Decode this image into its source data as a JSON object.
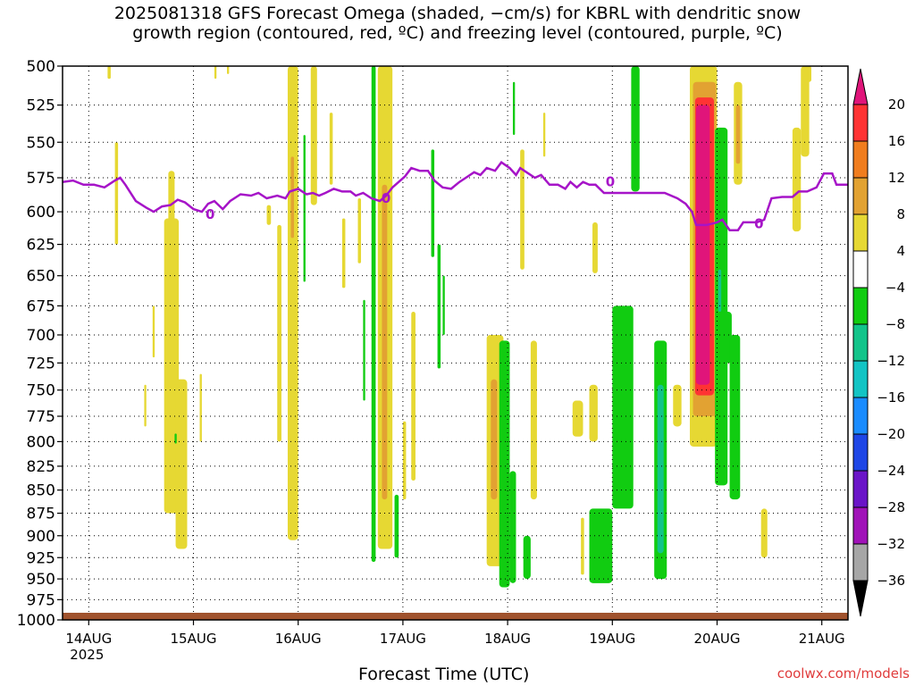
{
  "title": "2025081318 GFS Forecast Omega (shaded, −cm/s) for KBRL with dendritic snow\ngrowth region (contoured, red, ºC) and freezing level (contoured, purple, ºC)",
  "credit": "coolwx.com/models",
  "chart_data": {
    "type": "heatmap",
    "xlabel": "Forecast Time (UTC)",
    "x_ticks": [
      {
        "x": 0,
        "label": "14AUG",
        "sub": "2025"
      },
      {
        "x": 1,
        "label": "15AUG"
      },
      {
        "x": 2,
        "label": "16AUG"
      },
      {
        "x": 3,
        "label": "17AUG"
      },
      {
        "x": 4,
        "label": "18AUG"
      },
      {
        "x": 5,
        "label": "19AUG"
      },
      {
        "x": 6,
        "label": "20AUG"
      },
      {
        "x": 7,
        "label": "21AUG"
      }
    ],
    "xlim": [
      -0.25,
      7.25
    ],
    "y_ticks": [
      500,
      525,
      550,
      575,
      600,
      625,
      650,
      675,
      700,
      725,
      750,
      775,
      800,
      825,
      850,
      875,
      900,
      925,
      950,
      975,
      1000
    ],
    "ylim": [
      500,
      1000
    ],
    "y_scale": "log-pressure",
    "grid": true,
    "colorbar": {
      "labels": [
        "20",
        "16",
        "12",
        "8",
        "4",
        "−4",
        "−8",
        "−12",
        "−16",
        "−20",
        "−24",
        "−28",
        "−32",
        "−36"
      ],
      "colors": [
        "#e0157a",
        "#ff3333",
        "#f07d1e",
        "#e2a232",
        "#e6d833",
        "#ffffff",
        "#11cc11",
        "#12c48a",
        "#12c4c4",
        "#1a8cff",
        "#1e46e6",
        "#6a14c8",
        "#a012b8",
        "#a6a6a6",
        "#000000"
      ]
    },
    "omega_regions": [
      {
        "class": "yellow",
        "x0": 0.18,
        "x1": 0.21,
        "p0": 500,
        "p1": 508
      },
      {
        "class": "yellow",
        "x0": 0.25,
        "x1": 0.28,
        "p0": 550,
        "p1": 625
      },
      {
        "class": "yellow",
        "x0": 0.53,
        "x1": 0.55,
        "p0": 745,
        "p1": 785
      },
      {
        "class": "yellow",
        "x0": 0.61,
        "x1": 0.63,
        "p0": 675,
        "p1": 720
      },
      {
        "class": "yellow",
        "x0": 0.72,
        "x1": 0.86,
        "p0": 605,
        "p1": 875
      },
      {
        "class": "yellow",
        "x0": 0.76,
        "x1": 0.82,
        "p0": 570,
        "p1": 610
      },
      {
        "class": "yellow",
        "x0": 0.83,
        "x1": 0.94,
        "p0": 740,
        "p1": 915
      },
      {
        "class": "green",
        "x0": 0.82,
        "x1": 0.84,
        "p0": 792,
        "p1": 802
      },
      {
        "class": "yellow",
        "x0": 1.06,
        "x1": 1.08,
        "p0": 735,
        "p1": 800
      },
      {
        "class": "yellow",
        "x0": 1.2,
        "x1": 1.22,
        "p0": 500,
        "p1": 508
      },
      {
        "class": "yellow",
        "x0": 1.32,
        "x1": 1.34,
        "p0": 500,
        "p1": 505
      },
      {
        "class": "yellow",
        "x0": 1.7,
        "x1": 1.74,
        "p0": 595,
        "p1": 610
      },
      {
        "class": "yellow",
        "x0": 1.8,
        "x1": 1.84,
        "p0": 610,
        "p1": 800
      },
      {
        "class": "yellow",
        "x0": 1.9,
        "x1": 2.0,
        "p0": 500,
        "p1": 905
      },
      {
        "class": "orange",
        "x0": 1.93,
        "x1": 1.96,
        "p0": 560,
        "p1": 620
      },
      {
        "class": "green",
        "x0": 2.05,
        "x1": 2.07,
        "p0": 545,
        "p1": 655
      },
      {
        "class": "yellow",
        "x0": 2.12,
        "x1": 2.18,
        "p0": 500,
        "p1": 595
      },
      {
        "class": "yellow",
        "x0": 2.3,
        "x1": 2.33,
        "p0": 530,
        "p1": 580
      },
      {
        "class": "yellow",
        "x0": 2.42,
        "x1": 2.45,
        "p0": 605,
        "p1": 660
      },
      {
        "class": "yellow",
        "x0": 2.57,
        "x1": 2.6,
        "p0": 590,
        "p1": 640
      },
      {
        "class": "green",
        "x0": 2.62,
        "x1": 2.64,
        "p0": 670,
        "p1": 760
      },
      {
        "class": "green",
        "x0": 2.7,
        "x1": 2.74,
        "p0": 500,
        "p1": 930
      },
      {
        "class": "yellow",
        "x0": 2.76,
        "x1": 2.9,
        "p0": 500,
        "p1": 915
      },
      {
        "class": "orange",
        "x0": 2.8,
        "x1": 2.85,
        "p0": 580,
        "p1": 860
      },
      {
        "class": "green",
        "x0": 2.92,
        "x1": 2.96,
        "p0": 855,
        "p1": 925
      },
      {
        "class": "yellow",
        "x0": 3.0,
        "x1": 3.03,
        "p0": 780,
        "p1": 860
      },
      {
        "class": "yellow",
        "x0": 3.08,
        "x1": 3.12,
        "p0": 680,
        "p1": 840
      },
      {
        "class": "green",
        "x0": 3.27,
        "x1": 3.3,
        "p0": 555,
        "p1": 635
      },
      {
        "class": "green",
        "x0": 3.33,
        "x1": 3.36,
        "p0": 625,
        "p1": 730
      },
      {
        "class": "green",
        "x0": 3.38,
        "x1": 3.4,
        "p0": 650,
        "p1": 700
      },
      {
        "class": "yellow",
        "x0": 3.8,
        "x1": 3.96,
        "p0": 700,
        "p1": 935
      },
      {
        "class": "orange",
        "x0": 3.84,
        "x1": 3.9,
        "p0": 740,
        "p1": 860
      },
      {
        "class": "green",
        "x0": 3.92,
        "x1": 4.02,
        "p0": 705,
        "p1": 960
      },
      {
        "class": "green",
        "x0": 4.02,
        "x1": 4.08,
        "p0": 830,
        "p1": 955
      },
      {
        "class": "green",
        "x0": 4.05,
        "x1": 4.07,
        "p0": 510,
        "p1": 545
      },
      {
        "class": "yellow",
        "x0": 4.12,
        "x1": 4.16,
        "p0": 555,
        "p1": 645
      },
      {
        "class": "green",
        "x0": 4.15,
        "x1": 4.22,
        "p0": 900,
        "p1": 950
      },
      {
        "class": "yellow",
        "x0": 4.22,
        "x1": 4.28,
        "p0": 705,
        "p1": 860
      },
      {
        "class": "yellow",
        "x0": 4.34,
        "x1": 4.36,
        "p0": 530,
        "p1": 560
      },
      {
        "class": "yellow",
        "x0": 4.62,
        "x1": 4.72,
        "p0": 760,
        "p1": 795
      },
      {
        "class": "yellow",
        "x0": 4.7,
        "x1": 4.73,
        "p0": 880,
        "p1": 945
      },
      {
        "class": "yellow",
        "x0": 4.78,
        "x1": 4.86,
        "p0": 745,
        "p1": 800
      },
      {
        "class": "yellow",
        "x0": 4.81,
        "x1": 4.86,
        "p0": 608,
        "p1": 648
      },
      {
        "class": "green",
        "x0": 4.78,
        "x1": 5.0,
        "p0": 870,
        "p1": 955
      },
      {
        "class": "green",
        "x0": 5.0,
        "x1": 5.2,
        "p0": 675,
        "p1": 870
      },
      {
        "class": "green",
        "x0": 5.18,
        "x1": 5.26,
        "p0": 500,
        "p1": 585
      },
      {
        "class": "green",
        "x0": 5.4,
        "x1": 5.52,
        "p0": 705,
        "p1": 950
      },
      {
        "class": "teal",
        "x0": 5.43,
        "x1": 5.49,
        "p0": 745,
        "p1": 920
      },
      {
        "class": "yellow",
        "x0": 5.58,
        "x1": 5.66,
        "p0": 745,
        "p1": 785
      },
      {
        "class": "yellow",
        "x0": 5.74,
        "x1": 6.0,
        "p0": 500,
        "p1": 805
      },
      {
        "class": "orange",
        "x0": 5.77,
        "x1": 5.99,
        "p0": 510,
        "p1": 775
      },
      {
        "class": "red",
        "x0": 5.79,
        "x1": 5.97,
        "p0": 520,
        "p1": 755
      },
      {
        "class": "magenta",
        "x0": 5.8,
        "x1": 5.93,
        "p0": 525,
        "p1": 745
      },
      {
        "class": "green",
        "x0": 5.98,
        "x1": 6.1,
        "p0": 540,
        "p1": 845
      },
      {
        "class": "teal",
        "x0": 6.01,
        "x1": 6.04,
        "p0": 645,
        "p1": 680
      },
      {
        "class": "green",
        "x0": 6.02,
        "x1": 6.14,
        "p0": 680,
        "p1": 725
      },
      {
        "class": "green",
        "x0": 6.12,
        "x1": 6.22,
        "p0": 700,
        "p1": 860
      },
      {
        "class": "yellow",
        "x0": 6.16,
        "x1": 6.24,
        "p0": 510,
        "p1": 580
      },
      {
        "class": "orange",
        "x0": 6.18,
        "x1": 6.22,
        "p0": 525,
        "p1": 565
      },
      {
        "class": "yellow",
        "x0": 6.42,
        "x1": 6.48,
        "p0": 870,
        "p1": 925
      },
      {
        "class": "yellow",
        "x0": 6.72,
        "x1": 6.8,
        "p0": 540,
        "p1": 615
      },
      {
        "class": "yellow",
        "x0": 6.8,
        "x1": 6.88,
        "p0": 500,
        "p1": 560
      },
      {
        "class": "yellow",
        "x0": 6.86,
        "x1": 6.9,
        "p0": 500,
        "p1": 510
      }
    ],
    "freezing_level_hpa": [
      [
        -0.25,
        578
      ],
      [
        -0.15,
        577
      ],
      [
        -0.05,
        580
      ],
      [
        0.05,
        580
      ],
      [
        0.15,
        582
      ],
      [
        0.25,
        577
      ],
      [
        0.3,
        575
      ],
      [
        0.35,
        580
      ],
      [
        0.45,
        592
      ],
      [
        0.55,
        597
      ],
      [
        0.62,
        600
      ],
      [
        0.7,
        596
      ],
      [
        0.78,
        595
      ],
      [
        0.85,
        591
      ],
      [
        0.92,
        593
      ],
      [
        1.0,
        598
      ],
      [
        1.08,
        600
      ],
      [
        1.14,
        594
      ],
      [
        1.2,
        592
      ],
      [
        1.28,
        598
      ],
      [
        1.35,
        592
      ],
      [
        1.45,
        587
      ],
      [
        1.55,
        588
      ],
      [
        1.62,
        586
      ],
      [
        1.7,
        590
      ],
      [
        1.8,
        588
      ],
      [
        1.88,
        590
      ],
      [
        1.92,
        585
      ],
      [
        2.0,
        583
      ],
      [
        2.08,
        587
      ],
      [
        2.14,
        586
      ],
      [
        2.2,
        588
      ],
      [
        2.26,
        586
      ],
      [
        2.34,
        583
      ],
      [
        2.42,
        585
      ],
      [
        2.5,
        585
      ],
      [
        2.55,
        588
      ],
      [
        2.62,
        586
      ],
      [
        2.7,
        590
      ],
      [
        2.78,
        592
      ],
      [
        2.84,
        588
      ],
      [
        2.9,
        582
      ],
      [
        2.96,
        578
      ],
      [
        3.02,
        574
      ],
      [
        3.08,
        568
      ],
      [
        3.16,
        570
      ],
      [
        3.24,
        570
      ],
      [
        3.3,
        577
      ],
      [
        3.38,
        582
      ],
      [
        3.46,
        583
      ],
      [
        3.54,
        578
      ],
      [
        3.62,
        574
      ],
      [
        3.68,
        571
      ],
      [
        3.74,
        573
      ],
      [
        3.8,
        568
      ],
      [
        3.88,
        570
      ],
      [
        3.94,
        564
      ],
      [
        4.02,
        568
      ],
      [
        4.08,
        573
      ],
      [
        4.12,
        568
      ],
      [
        4.18,
        571
      ],
      [
        4.26,
        575
      ],
      [
        4.32,
        573
      ],
      [
        4.4,
        580
      ],
      [
        4.48,
        580
      ],
      [
        4.55,
        583
      ],
      [
        4.6,
        578
      ],
      [
        4.66,
        582
      ],
      [
        4.72,
        578
      ],
      [
        4.78,
        580
      ],
      [
        4.84,
        580
      ],
      [
        4.92,
        586
      ],
      [
        5.0,
        586
      ],
      [
        5.1,
        586
      ],
      [
        5.2,
        586
      ],
      [
        5.3,
        586
      ],
      [
        5.4,
        586
      ],
      [
        5.5,
        586
      ],
      [
        5.62,
        590
      ],
      [
        5.7,
        594
      ],
      [
        5.76,
        600
      ],
      [
        5.8,
        610
      ],
      [
        5.9,
        610
      ],
      [
        6.0,
        608
      ],
      [
        6.05,
        606
      ],
      [
        6.12,
        614
      ],
      [
        6.2,
        614
      ],
      [
        6.25,
        608
      ],
      [
        6.38,
        608
      ],
      [
        6.45,
        606
      ],
      [
        6.52,
        590
      ],
      [
        6.62,
        589
      ],
      [
        6.72,
        589
      ],
      [
        6.78,
        585
      ],
      [
        6.86,
        585
      ],
      [
        6.95,
        582
      ],
      [
        7.02,
        572
      ],
      [
        7.1,
        572
      ],
      [
        7.14,
        580
      ],
      [
        7.25,
        580
      ]
    ],
    "freezing_level_labels": [
      {
        "text": "0",
        "x": 1.16,
        "p": 602
      },
      {
        "text": "0",
        "x": 2.84,
        "p": 590
      },
      {
        "text": "0",
        "x": 4.98,
        "p": 578
      },
      {
        "text": "0",
        "x": 6.4,
        "p": 609
      }
    ],
    "ground": {
      "color": "#a0522d",
      "label": ""
    }
  }
}
